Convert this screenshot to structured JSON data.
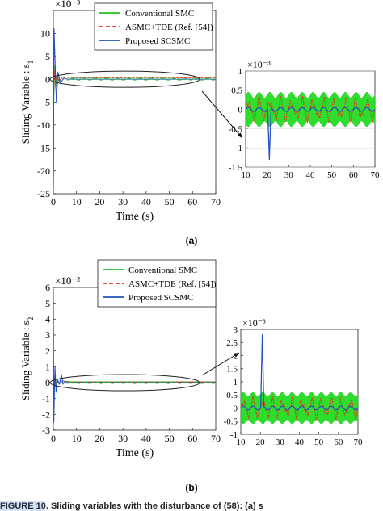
{
  "colors": {
    "conventional": "#1fc01f",
    "conventional_fill": "#22dd22",
    "asmc": "#e03a1e",
    "proposed": "#2553c2",
    "annotation": "#111111"
  },
  "panel_a_label": "(a)",
  "panel_b_label": "(b)",
  "caption_text": "FIGURE 10. Sliding variables with the disturbance of (58): (a) s",
  "chart_data": [
    {
      "id": "a-main",
      "type": "line",
      "xlabel": "Time (s)",
      "ylabel": "Sliding Variable : s",
      "ylabel_sub": "1",
      "exponent": "×10⁻³",
      "xlim": [
        0,
        70
      ],
      "ylim": [
        -25,
        15
      ],
      "xticks": [
        "0",
        "10",
        "20",
        "30",
        "40",
        "50",
        "60",
        "70"
      ],
      "yticks": [
        "-25",
        "-20",
        "-15",
        "-10",
        "-5",
        "0",
        "5",
        "10"
      ],
      "legend": [
        "Conventional SMC",
        "ASMC+TDE (Ref. [54])",
        "Proposed SCSMC"
      ],
      "legend_position": "top-right",
      "series": [
        {
          "name": "Conventional SMC",
          "x": [
            0,
            0.2,
            0.6,
            1.0,
            1.6,
            2.5,
            4,
            8,
            70
          ],
          "y": [
            -25,
            -4,
            3,
            -2,
            1,
            -0.5,
            0.5,
            0.4,
            0.4
          ]
        },
        {
          "name": "ASMC+TDE (Ref. [54])",
          "x": [
            0,
            0.2,
            0.6,
            1.0,
            1.6,
            2.5,
            4,
            8,
            70
          ],
          "y": [
            -24,
            -3,
            2,
            -1.5,
            0.8,
            -0.4,
            0.4,
            0.3,
            0.3
          ]
        },
        {
          "name": "Proposed SCSMC",
          "x": [
            0,
            0.3,
            0.8,
            1.3,
            2.0,
            3.0,
            4.5,
            6,
            70
          ],
          "y": [
            -25,
            11,
            3,
            -5,
            1.5,
            -0.8,
            0.2,
            0,
            0
          ]
        }
      ]
    },
    {
      "id": "a-inset",
      "type": "line",
      "exponent": "×10⁻³",
      "xlim": [
        10,
        70
      ],
      "ylim": [
        -1.5,
        1
      ],
      "xticks": [
        "10",
        "20",
        "30",
        "40",
        "50",
        "60",
        "70"
      ],
      "yticks": [
        "-1.5",
        "-1",
        "-0.5",
        "0",
        "0.5",
        "1"
      ],
      "series": [
        {
          "name": "Conventional SMC",
          "period_s": 5,
          "amplitude_min": 0.3,
          "amplitude_max": 0.45
        },
        {
          "name": "ASMC+TDE (Ref. [54])",
          "period_s": 5,
          "amplitude": 0.35
        },
        {
          "name": "Proposed SCSMC",
          "period_s": 5,
          "amplitude": 0.05,
          "spike": {
            "x": 21,
            "y": -1.3
          }
        }
      ]
    },
    {
      "id": "b-main",
      "type": "line",
      "xlabel": "Time (s)",
      "ylabel": "Sliding Variable : s",
      "ylabel_sub": "2",
      "exponent": "×10⁻²",
      "xlim": [
        0,
        70
      ],
      "ylim": [
        -3,
        6
      ],
      "xticks": [
        "0",
        "10",
        "20",
        "30",
        "40",
        "50",
        "60",
        "70"
      ],
      "yticks": [
        "-3",
        "-2",
        "-1",
        "0",
        "1",
        "2",
        "3",
        "4",
        "5",
        "6"
      ],
      "legend": [
        "Conventional SMC",
        "ASMC+TDE (Ref. [54])",
        "Proposed SCSMC"
      ],
      "legend_position": "top-right",
      "series": [
        {
          "name": "Conventional SMC",
          "x": [
            0,
            0.2,
            0.6,
            1.0,
            1.6,
            2.5,
            4,
            8,
            70
          ],
          "y": [
            1.5,
            -1,
            0.4,
            -0.3,
            0.2,
            -0.1,
            0.1,
            0.05,
            0.05
          ]
        },
        {
          "name": "ASMC+TDE (Ref. [54])",
          "x": [
            0,
            0.2,
            0.6,
            1.0,
            1.6,
            2.5,
            4,
            8,
            70
          ],
          "y": [
            1.2,
            -0.8,
            0.3,
            -0.2,
            0.15,
            -0.1,
            0.1,
            0.05,
            0.05
          ]
        },
        {
          "name": "Proposed SCSMC",
          "x": [
            0,
            0.2,
            0.7,
            1.2,
            1.8,
            2.6,
            3.5,
            4.2,
            5,
            6,
            70
          ],
          "y": [
            5.9,
            -2.5,
            1.0,
            -0.6,
            0.2,
            -0.1,
            0.5,
            -0.1,
            0.05,
            0,
            0
          ]
        }
      ]
    },
    {
      "id": "b-inset",
      "type": "line",
      "exponent": "×10⁻³",
      "xlim": [
        10,
        70
      ],
      "ylim": [
        -1,
        3
      ],
      "xticks": [
        "10",
        "20",
        "30",
        "40",
        "50",
        "60",
        "70"
      ],
      "yticks": [
        "-1",
        "-0.5",
        "0",
        "0.5",
        "1",
        "1.5",
        "2",
        "2.5",
        "3"
      ],
      "series": [
        {
          "name": "Conventional SMC",
          "period_s": 5,
          "amplitude_min": 0.45,
          "amplitude_max": 0.6
        },
        {
          "name": "ASMC+TDE (Ref. [54])",
          "period_s": 5,
          "amplitude": 0.45
        },
        {
          "name": "Proposed SCSMC",
          "period_s": 5,
          "amplitude": 0.07,
          "spike": {
            "x": 21,
            "y": 2.8
          }
        }
      ]
    }
  ]
}
